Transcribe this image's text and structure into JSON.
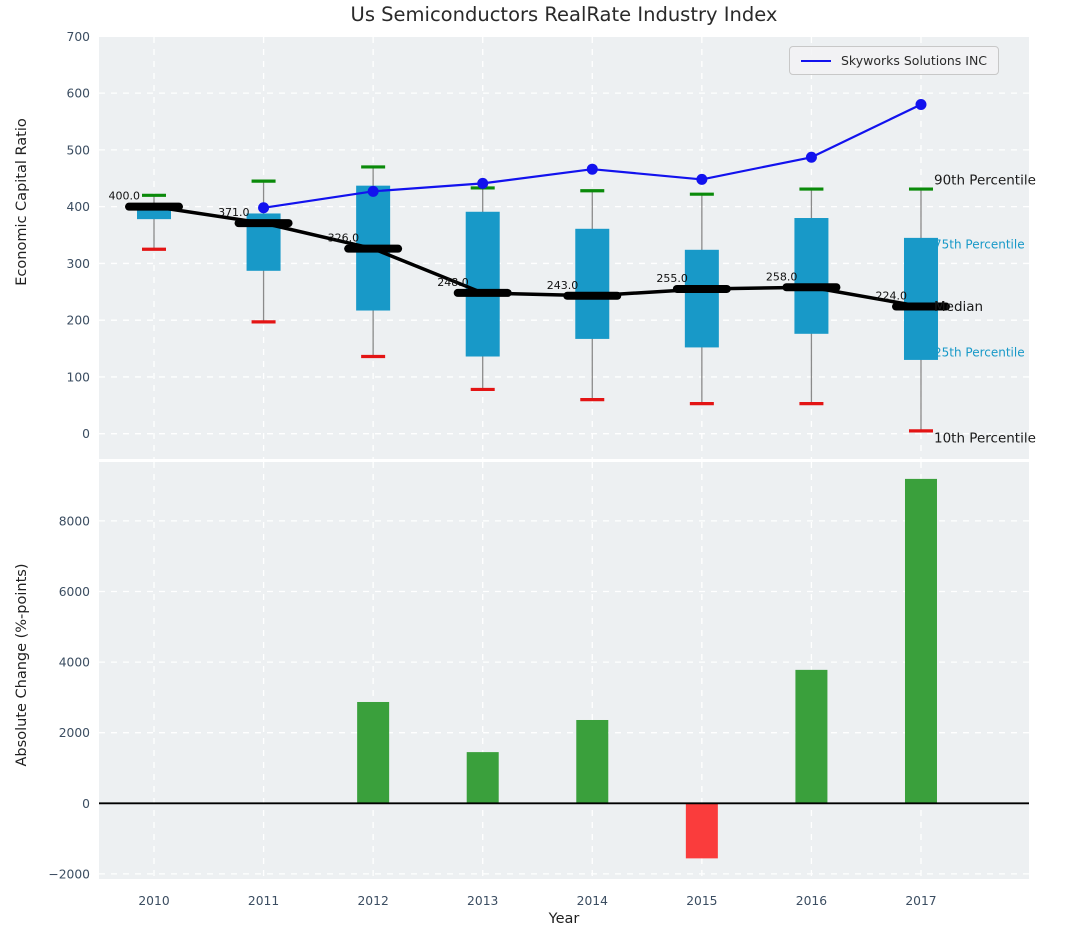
{
  "title": "Us Semiconductors RealRate Industry Index",
  "top_chart": {
    "ylabel": "Economic Capital Ratio",
    "legend_label": "Skyworks Solutions INC",
    "yticks": [
      0,
      100,
      200,
      300,
      400,
      500,
      600,
      700
    ],
    "annotations": [
      {
        "text": "90th Percentile",
        "value": 431,
        "dy": -9,
        "color": "#1a1a1a",
        "size": 13.5
      },
      {
        "text": "75th Percentile",
        "value": 345,
        "dy": 6,
        "color": "#1899c8",
        "size": 12
      },
      {
        "text": "Median",
        "value": 224,
        "dy": 0,
        "color": "#1a1a1a",
        "size": 13.5
      },
      {
        "text": "25th Percentile",
        "value": 130,
        "dy": -8,
        "color": "#1899c8",
        "size": 12
      },
      {
        "text": "10th Percentile",
        "value": 5,
        "dy": 7,
        "color": "#1a1a1a",
        "size": 13.5
      }
    ]
  },
  "bottom_chart": {
    "ylabel": "Absolute Change (%-points)",
    "xlabel": "Year",
    "yticks": [
      -2000,
      0,
      2000,
      4000,
      6000,
      8000
    ],
    "ytick_labels": [
      "−2000",
      "0",
      "2000",
      "4000",
      "6000",
      "8000"
    ]
  },
  "chart_data": [
    {
      "type": "boxplot+line",
      "title": "Us Semiconductors RealRate Industry Index",
      "ylabel": "Economic Capital Ratio",
      "categories": [
        "2010",
        "2011",
        "2012",
        "2013",
        "2014",
        "2015",
        "2016",
        "2017"
      ],
      "ylim": [
        -45,
        700
      ],
      "grid": true,
      "legend_position": "upper right",
      "series": [
        {
          "name": "90th Percentile",
          "values": [
            420,
            445,
            470,
            433,
            428,
            422,
            431,
            431
          ]
        },
        {
          "name": "75th Percentile",
          "values": [
            405,
            388,
            437,
            391,
            361,
            324,
            380,
            345
          ]
        },
        {
          "name": "Median",
          "values": [
            400,
            371,
            326,
            248,
            243,
            255,
            258,
            224
          ]
        },
        {
          "name": "25th Percentile",
          "values": [
            378,
            287,
            217,
            136,
            167,
            152,
            176,
            130
          ]
        },
        {
          "name": "10th Percentile",
          "values": [
            325,
            197,
            136,
            78,
            60,
            53,
            53,
            5
          ]
        },
        {
          "name": "Skyworks Solutions INC",
          "values": [
            null,
            398,
            427,
            441,
            466,
            448,
            487,
            580
          ]
        }
      ],
      "median_labels": [
        "400.0",
        "371.0",
        "326.0",
        "248.0",
        "243.0",
        "255.0",
        "258.0",
        "224.0"
      ]
    },
    {
      "type": "bar",
      "categories": [
        "2010",
        "2011",
        "2012",
        "2013",
        "2014",
        "2015",
        "2016",
        "2017"
      ],
      "values": [
        null,
        null,
        2870,
        1450,
        2360,
        -1560,
        3780,
        9190
      ],
      "ylabel": "Absolute Change (%-points)",
      "xlabel": "Year",
      "ylim": [
        -2115,
        9670
      ],
      "grid": true
    }
  ],
  "colors": {
    "axes_bg": "#edf0f2",
    "grid": "#ffffff",
    "box_fill": "#1899c8",
    "whisker": "#8a8a8a",
    "cap_high": "#0a8a0a",
    "cap_low": "#e31414",
    "median_line": "#000000",
    "skyworks_line": "#1212ee",
    "bar_positive": "#3aa03c",
    "bar_negative": "#fa3c3c",
    "tick_label": "#3b4d61",
    "zero_line": "#000000"
  }
}
